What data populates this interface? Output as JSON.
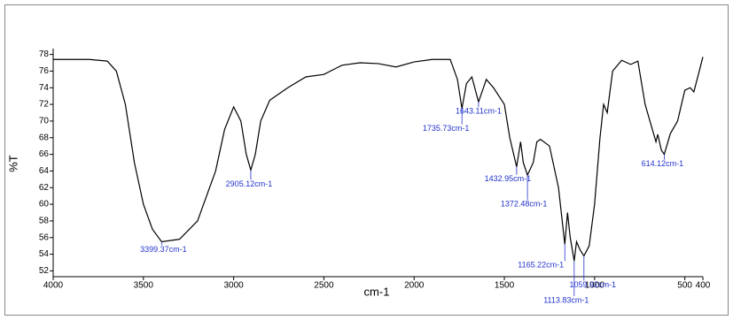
{
  "chart_data": {
    "type": "line",
    "x_label": "cm-1",
    "y_label": "%T",
    "x": [
      4000,
      3800,
      3700,
      3650,
      3600,
      3550,
      3500,
      3450,
      3399,
      3300,
      3200,
      3100,
      3050,
      3000,
      2960,
      2930,
      2905,
      2880,
      2850,
      2800,
      2700,
      2600,
      2500,
      2400,
      2300,
      2200,
      2100,
      2000,
      1900,
      1800,
      1760,
      1735,
      1710,
      1680,
      1643,
      1600,
      1560,
      1500,
      1470,
      1432,
      1410,
      1395,
      1372,
      1340,
      1320,
      1300,
      1250,
      1200,
      1165,
      1150,
      1135,
      1113,
      1100,
      1080,
      1059,
      1030,
      1000,
      970,
      950,
      930,
      900,
      850,
      800,
      760,
      720,
      680,
      660,
      650,
      630,
      614,
      580,
      540,
      500,
      470,
      450,
      420,
      400
    ],
    "series": [
      {
        "name": "%T",
        "color": "#000000",
        "values": [
          77.4,
          77.4,
          77.2,
          76,
          72,
          65,
          60,
          57,
          55.5,
          55.8,
          58,
          64,
          69,
          71.7,
          70,
          66,
          64.1,
          66,
          70,
          72.5,
          74,
          75.3,
          75.6,
          76.7,
          77,
          76.9,
          76.5,
          77.1,
          77.4,
          77.4,
          75,
          71.5,
          74.5,
          75.3,
          72.3,
          75,
          74,
          72,
          68,
          64.5,
          67.5,
          65,
          63.5,
          65,
          67.5,
          67.8,
          67,
          62,
          55.2,
          59,
          56,
          53.2,
          55.5,
          54.5,
          53.8,
          55,
          60,
          68,
          72,
          71,
          76,
          77.3,
          76.8,
          77.2,
          72,
          69,
          67.5,
          68.4,
          66.5,
          66,
          68.5,
          70,
          73.7,
          74,
          73.5,
          76,
          77.7
        ]
      }
    ],
    "xlim": [
      4000,
      400
    ],
    "ylim": [
      51.3,
      78.7
    ],
    "xticks": [
      4000,
      3500,
      3000,
      2500,
      2000,
      1500,
      1000,
      500,
      400
    ],
    "yticks": [
      52,
      54,
      56,
      58,
      60,
      62,
      64,
      66,
      68,
      70,
      72,
      74,
      76,
      78
    ],
    "annotations": [
      {
        "text": "3399.37cm-1",
        "x": 3399,
        "y": 55.5
      },
      {
        "text": "2905.12cm-1",
        "x": 2905,
        "y": 64.1
      },
      {
        "text": "1643.11cm-1",
        "x": 1643,
        "y": 72.3
      },
      {
        "text": "1735.73cm-1",
        "x": 1735,
        "y": 71.5
      },
      {
        "text": "1432.95cm-1",
        "x": 1432,
        "y": 64.5
      },
      {
        "text": "1372.48cm-1",
        "x": 1372,
        "y": 63.5
      },
      {
        "text": "1165.22cm-1",
        "x": 1165,
        "y": 55.2
      },
      {
        "text": "1059.92cm-1",
        "x": 1059,
        "y": 53.8
      },
      {
        "text": "1113.83cm-1",
        "x": 1113,
        "y": 53.2
      },
      {
        "text": "614.12cm-1",
        "x": 614,
        "y": 66
      }
    ]
  }
}
